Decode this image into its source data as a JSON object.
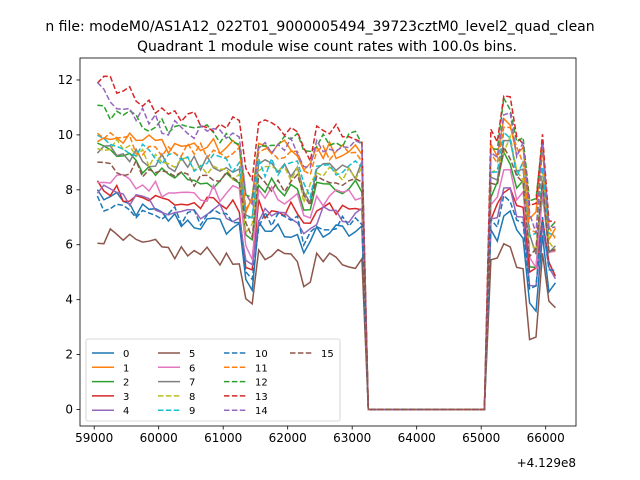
{
  "chart_data": {
    "type": "line",
    "suptitle": "n file: modeM0/AS1A12_022T01_9000005494_39723cztM0_level2_quad_clean",
    "title": "Quadrant 1 module wise count rates with 100.0s bins.",
    "xlabel": "",
    "ylabel": "",
    "x_offset_label": "+4.129e8",
    "xlim": [
      58780,
      66470
    ],
    "ylim": [
      -0.6,
      12.8
    ],
    "xticks": [
      59000,
      60000,
      61000,
      62000,
      63000,
      64000,
      65000,
      66000
    ],
    "yticks": [
      0,
      2,
      4,
      6,
      8,
      10,
      12
    ],
    "grid": false,
    "legend_position": "lower-left",
    "gap": {
      "start": 63100,
      "end": 65100,
      "low_start": 63200,
      "low_end": 65100,
      "value": 0
    },
    "dip_times": [
      61400,
      62300,
      65800
    ],
    "x_range": [
      59050,
      66150
    ],
    "bin_width": 100,
    "series": [
      {
        "name": "0",
        "color": "#1f77b4",
        "dash": "solid",
        "base": 6.4,
        "start": 7.9
      },
      {
        "name": "1",
        "color": "#ff7f0e",
        "dash": "solid",
        "base": 9.4,
        "start": 10.1
      },
      {
        "name": "2",
        "color": "#2ca02c",
        "dash": "solid",
        "base": 8.0,
        "start": 9.6
      },
      {
        "name": "3",
        "color": "#d62728",
        "dash": "solid",
        "base": 7.2,
        "start": 8.2
      },
      {
        "name": "4",
        "color": "#9467bd",
        "dash": "solid",
        "base": 7.0,
        "start": 8.0
      },
      {
        "name": "5",
        "color": "#8c564b",
        "dash": "solid",
        "base": 5.4,
        "start": 6.4
      },
      {
        "name": "6",
        "color": "#e377c2",
        "dash": "solid",
        "base": 7.7,
        "start": 8.6
      },
      {
        "name": "7",
        "color": "#7f7f7f",
        "dash": "solid",
        "base": 8.7,
        "start": 9.6
      },
      {
        "name": "8",
        "color": "#bcbd22",
        "dash": "dashed",
        "base": 8.5,
        "start": 9.8
      },
      {
        "name": "9",
        "color": "#17becf",
        "dash": "dashed",
        "base": 8.7,
        "start": 9.9
      },
      {
        "name": "10",
        "color": "#1f77b4",
        "dash": "dashed",
        "base": 6.8,
        "start": 7.6
      },
      {
        "name": "11",
        "color": "#ff7f0e",
        "dash": "dashed",
        "base": 9.3,
        "start": 9.9
      },
      {
        "name": "12",
        "color": "#2ca02c",
        "dash": "dashed",
        "base": 9.8,
        "start": 11.1
      },
      {
        "name": "13",
        "color": "#d62728",
        "dash": "dashed",
        "base": 10.0,
        "start": 12.2
      },
      {
        "name": "14",
        "color": "#9467bd",
        "dash": "dashed",
        "base": 9.4,
        "start": 11.8
      },
      {
        "name": "15",
        "color": "#8c564b",
        "dash": "dashed",
        "base": 8.2,
        "start": 9.1
      }
    ]
  }
}
